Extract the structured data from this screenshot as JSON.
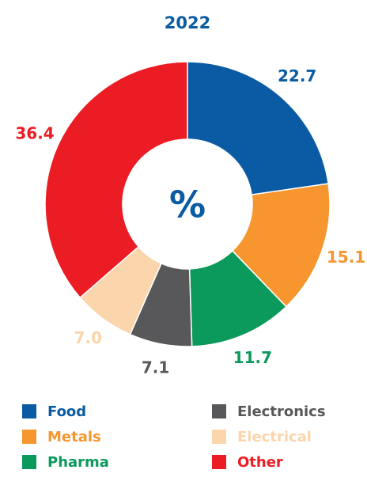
{
  "chart_data": {
    "type": "donut",
    "title": "2022",
    "center_label": "%",
    "categories": [
      "Food",
      "Metals",
      "Pharma",
      "Electronics",
      "Electrical",
      "Other"
    ],
    "values": [
      22.7,
      15.1,
      11.7,
      7.1,
      7.0,
      36.4
    ],
    "value_labels": [
      "22.7",
      "15.1",
      "11.7",
      "7.1",
      "7.0",
      "36.4"
    ],
    "colors": [
      "#0a5ba3",
      "#f7962f",
      "#0b9a5c",
      "#58585a",
      "#fbd5ac",
      "#ec1c24"
    ],
    "legend": "bottom"
  }
}
